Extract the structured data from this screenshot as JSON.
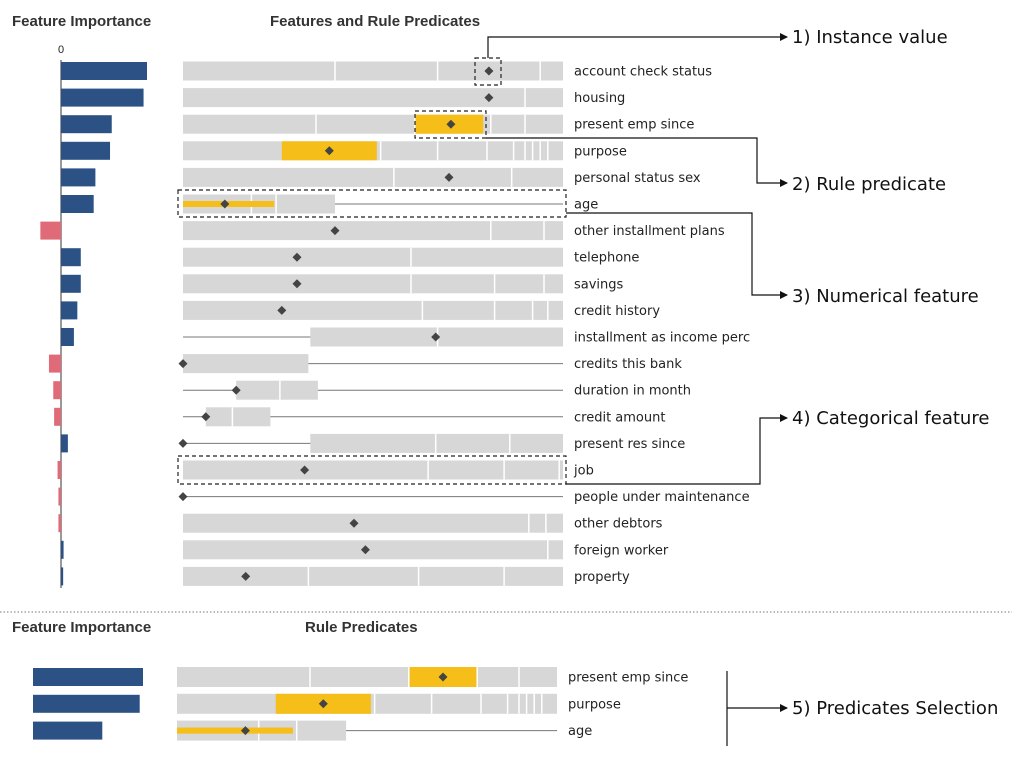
{
  "colors": {
    "positive": "#2c5185",
    "negative": "#e06a78",
    "segment": "#d7d7d7",
    "highlight": "#f5be18",
    "marker": "#444444",
    "line": "#777777"
  },
  "top_panel": {
    "importance_header": "Feature Importance",
    "predicates_header": "Features and Rule Predicates",
    "zero_tick": "0",
    "features": [
      {
        "name": "account check status",
        "importance": 1.0,
        "kind": "categorical",
        "marker": 0.805,
        "breaks": [
          0.4,
          0.67,
          0.94
        ],
        "highlight": null
      },
      {
        "name": "housing",
        "importance": 0.96,
        "kind": "categorical",
        "marker": 0.805,
        "breaks": [
          0.9
        ],
        "highlight": null
      },
      {
        "name": "present emp since",
        "importance": 0.59,
        "kind": "categorical",
        "marker": 0.705,
        "breaks": [
          0.35,
          0.61,
          0.81,
          0.9
        ],
        "highlight": [
          0.61,
          0.79
        ]
      },
      {
        "name": "purpose",
        "importance": 0.57,
        "kind": "categorical",
        "marker": 0.385,
        "breaks": [
          0.52,
          0.67,
          0.8,
          0.87,
          0.9,
          0.92,
          0.94,
          0.96
        ],
        "highlight": [
          0.26,
          0.51
        ]
      },
      {
        "name": "personal status sex",
        "importance": 0.4,
        "kind": "categorical",
        "marker": 0.7,
        "breaks": [
          0.555,
          0.865
        ],
        "highlight": null
      },
      {
        "name": "age",
        "importance": 0.38,
        "kind": "numerical",
        "marker": 0.11,
        "range": [
          0.0,
          0.4
        ],
        "breaks": [
          0.18,
          0.245
        ],
        "highlight": [
          0.0,
          0.24
        ]
      },
      {
        "name": "other installment plans",
        "importance": -0.24,
        "kind": "categorical",
        "marker": 0.4,
        "breaks": [
          0.81,
          0.95
        ],
        "highlight": null
      },
      {
        "name": "telephone",
        "importance": 0.23,
        "kind": "categorical",
        "marker": 0.3,
        "breaks": [
          0.6
        ],
        "highlight": null
      },
      {
        "name": "savings",
        "importance": 0.23,
        "kind": "categorical",
        "marker": 0.3,
        "breaks": [
          0.6,
          0.82,
          0.95
        ],
        "highlight": null
      },
      {
        "name": "credit history",
        "importance": 0.19,
        "kind": "categorical",
        "marker": 0.26,
        "breaks": [
          0.63,
          0.82,
          0.92,
          0.96
        ],
        "highlight": null
      },
      {
        "name": "installment as income perc",
        "importance": 0.15,
        "kind": "numerical",
        "marker": 0.665,
        "range": [
          0.335,
          1.0
        ],
        "breaks": [
          0.67
        ],
        "highlight": null
      },
      {
        "name": "credits this bank",
        "importance": -0.14,
        "kind": "numerical",
        "marker": 0.0,
        "range": [
          0.0,
          0.33
        ],
        "breaks": [],
        "highlight": null
      },
      {
        "name": "duration in month",
        "importance": -0.09,
        "kind": "numerical",
        "marker": 0.14,
        "range": [
          0.14,
          0.355
        ],
        "breaks": [
          0.255
        ],
        "highlight": null
      },
      {
        "name": "credit amount",
        "importance": -0.08,
        "kind": "numerical",
        "marker": 0.06,
        "range": [
          0.06,
          0.23
        ],
        "breaks": [
          0.13
        ],
        "highlight": null
      },
      {
        "name": "present res since",
        "importance": 0.08,
        "kind": "numerical",
        "marker": 0.0,
        "range": [
          0.335,
          1.0
        ],
        "breaks": [
          0.665,
          0.86
        ],
        "highlight": null
      },
      {
        "name": "job",
        "importance": -0.04,
        "kind": "categorical",
        "marker": 0.32,
        "breaks": [
          0.645,
          0.845,
          0.99
        ],
        "highlight": null
      },
      {
        "name": "people under maintenance",
        "importance": -0.03,
        "kind": "numerical",
        "marker": 0.0,
        "range": null,
        "breaks": [],
        "highlight": null
      },
      {
        "name": "other debtors",
        "importance": -0.03,
        "kind": "categorical",
        "marker": 0.45,
        "breaks": [
          0.91,
          0.955
        ],
        "highlight": null
      },
      {
        "name": "foreign worker",
        "importance": 0.03,
        "kind": "categorical",
        "marker": 0.48,
        "breaks": [
          0.96
        ],
        "highlight": null
      },
      {
        "name": "property",
        "importance": 0.025,
        "kind": "categorical",
        "marker": 0.165,
        "breaks": [
          0.33,
          0.62,
          0.845
        ],
        "highlight": null
      }
    ]
  },
  "bottom_panel": {
    "importance_header": "Feature Importance",
    "predicates_header": "Rule Predicates",
    "features": [
      {
        "name": "present emp since",
        "importance": 1.0,
        "kind": "categorical",
        "marker": 0.7,
        "breaks": [
          0.35,
          0.61,
          0.79,
          0.9
        ],
        "highlight": [
          0.61,
          0.79
        ]
      },
      {
        "name": "purpose",
        "importance": 0.97,
        "kind": "categorical",
        "marker": 0.385,
        "breaks": [
          0.52,
          0.67,
          0.8,
          0.87,
          0.9,
          0.92,
          0.94,
          0.96
        ],
        "highlight": [
          0.26,
          0.51
        ]
      },
      {
        "name": "age",
        "importance": 0.63,
        "kind": "numerical",
        "marker": 0.18,
        "range": [
          0.0,
          0.445
        ],
        "breaks": [
          0.215,
          0.315
        ],
        "highlight": [
          0.0,
          0.305
        ]
      }
    ]
  },
  "annotations": {
    "instance_value": "1) Instance value",
    "rule_predicate": "2) Rule predicate",
    "numerical_feature": "3) Numerical feature",
    "categorical_feature": "4) Categorical feature",
    "predicates_selection": "5) Predicates Selection"
  }
}
